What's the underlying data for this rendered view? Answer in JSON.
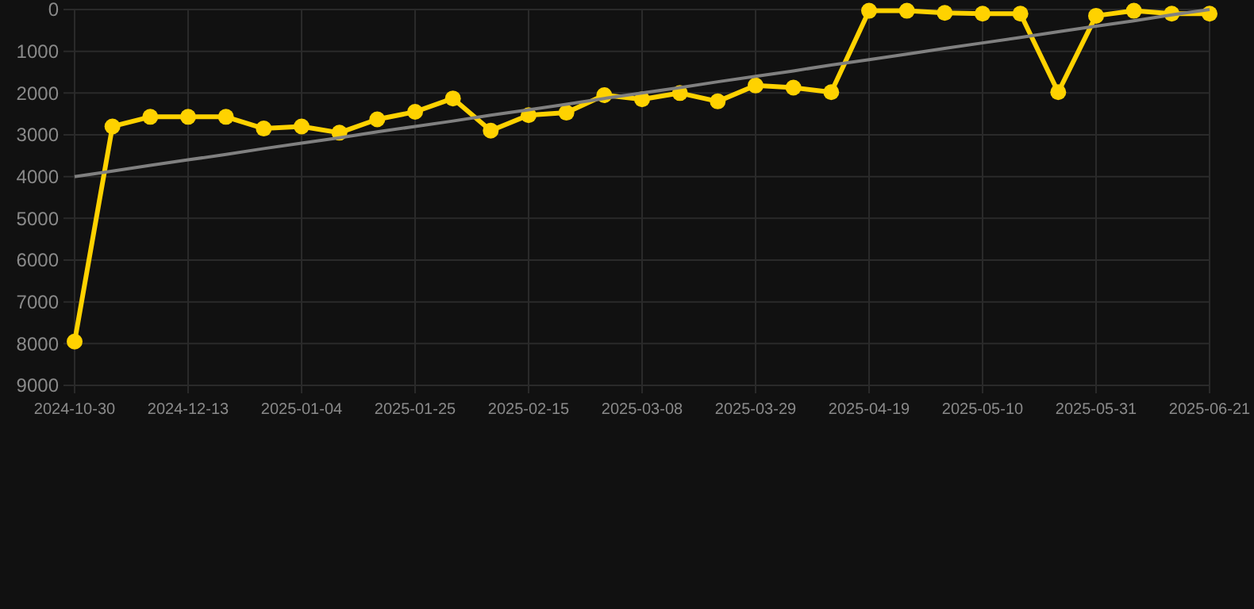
{
  "chart_data": {
    "type": "line",
    "categories": [
      "2024-10-30",
      null,
      null,
      "2024-12-13",
      null,
      null,
      "2025-01-04",
      null,
      null,
      "2025-01-25",
      null,
      null,
      "2025-02-15",
      null,
      null,
      "2025-03-08",
      null,
      null,
      "2025-03-29",
      null,
      null,
      "2025-04-19",
      null,
      null,
      "2025-05-10",
      null,
      null,
      "2025-05-31",
      null,
      null,
      "2025-06-21"
    ],
    "series": [
      {
        "color": "#ffd200",
        "marker": "circle",
        "values": [
          7950,
          2800,
          2570,
          2570,
          2570,
          2850,
          2800,
          2950,
          2630,
          2450,
          2130,
          2900,
          2530,
          2470,
          2050,
          2150,
          2000,
          2200,
          1820,
          1870,
          1980,
          30,
          30,
          80,
          100,
          100,
          1980,
          150,
          30,
          100,
          100
        ]
      },
      {
        "color": "#808080",
        "marker": "none",
        "values": [
          4000,
          3870,
          3730,
          3600,
          3470,
          3330,
          3200,
          3070,
          2930,
          2800,
          2670,
          2530,
          2400,
          2270,
          2130,
          2000,
          1870,
          1730,
          1600,
          1470,
          1330,
          1200,
          1070,
          930,
          800,
          670,
          530,
          400,
          270,
          130,
          0
        ]
      }
    ],
    "ylim": [
      9000,
      0
    ],
    "yticks": [
      0,
      1000,
      2000,
      3000,
      4000,
      5000,
      6000,
      7000,
      8000,
      9000
    ],
    "grid": true
  }
}
